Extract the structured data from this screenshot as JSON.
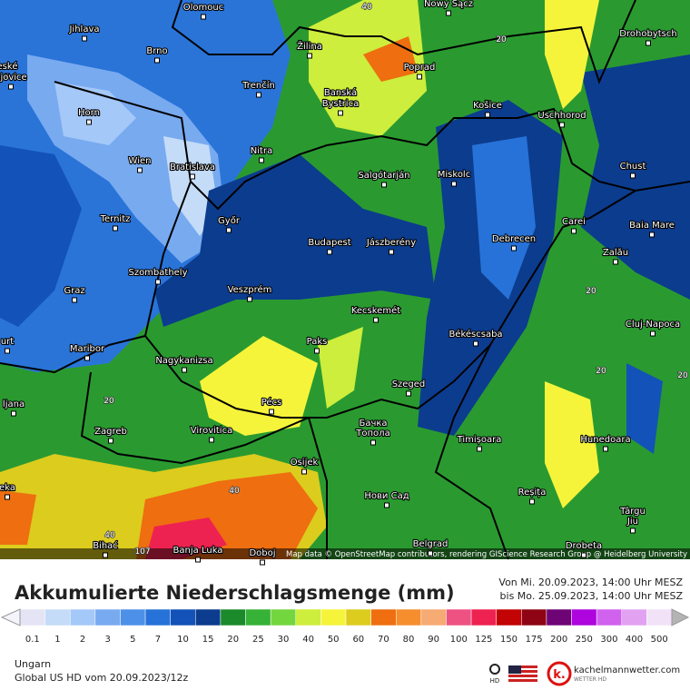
{
  "map": {
    "cities": [
      "Olomouc",
      "Nowy Sącz",
      "Jihlava",
      "Drohobytsch",
      "Brno",
      "Žilina",
      "eské",
      "ějovice",
      "Poprad",
      "Trenčín",
      "Banská",
      "Bystrica",
      "Košice",
      "Uschhorod",
      "Horn",
      "Nitra",
      "Wien",
      "Bratislava",
      "Salgótarján",
      "Miskolc",
      "Chust",
      "Ternitz",
      "Győr",
      "Carei",
      "Baia Mare",
      "Budapest",
      "Jászberény",
      "Debrecen",
      "Zalău",
      "Szombathely",
      "Graz",
      "Veszprém",
      "Cluj-Napoca",
      "Kecskemét",
      "Békéscsaba",
      "Paks",
      "urt",
      "Maribor",
      "Nagykanizsa",
      "Szeged",
      "ljana",
      "Pécs",
      "Zagreb",
      "Virovitica",
      "Бачка",
      "Топола",
      "Timișoara",
      "Hunedoara",
      "Osijek",
      "eka",
      "Нови Сад",
      "Reșița",
      "Târgu",
      "Jiu",
      "Bihać",
      "Banja Luka",
      "Doboj",
      "Belgrad",
      "Drobeta"
    ],
    "contour_labels": [
      "40",
      "20",
      "20",
      "40",
      "40",
      "20",
      "20",
      "20",
      "107"
    ],
    "credits": "Map data © OpenStreetMap contributors, rendering GIScience Research Group @ Heidelberg University"
  },
  "header": {
    "title": "Akkumulierte Niederschlagsmenge (mm)",
    "period_from": "Von Mi. 20.09.2023, 14:00 Uhr MESZ",
    "period_to": "bis Mo. 25.09.2023, 14:00 Uhr MESZ"
  },
  "legend": {
    "labels": [
      0.1,
      1,
      2,
      3,
      5,
      7,
      10,
      15,
      20,
      25,
      30,
      40,
      50,
      60,
      70,
      80,
      90,
      100,
      125,
      150,
      175,
      200,
      250,
      300,
      400,
      500
    ],
    "colors": [
      "#e4e4f4",
      "#c4dcf8",
      "#a4c8f8",
      "#78aaf0",
      "#4c90e8",
      "#2672d8",
      "#1352b8",
      "#0c3c8e",
      "#1a8a2a",
      "#36b236",
      "#74d63e",
      "#cdee3c",
      "#f6f43a",
      "#dccc1e",
      "#ee6e10",
      "#f68e2e",
      "#f6aa74",
      "#ee5282",
      "#ee2250",
      "#c20404",
      "#8e0414",
      "#6e0476",
      "#ae04de",
      "#d062ee",
      "#e2a2f2",
      "#f2e2f8"
    ]
  },
  "footer": {
    "region": "Ungarn",
    "model": "Global US HD vom  20.09.2023/12z",
    "hd": "HD",
    "site": "kachelmannwetter.com",
    "site_sub": "WETTER HD"
  }
}
